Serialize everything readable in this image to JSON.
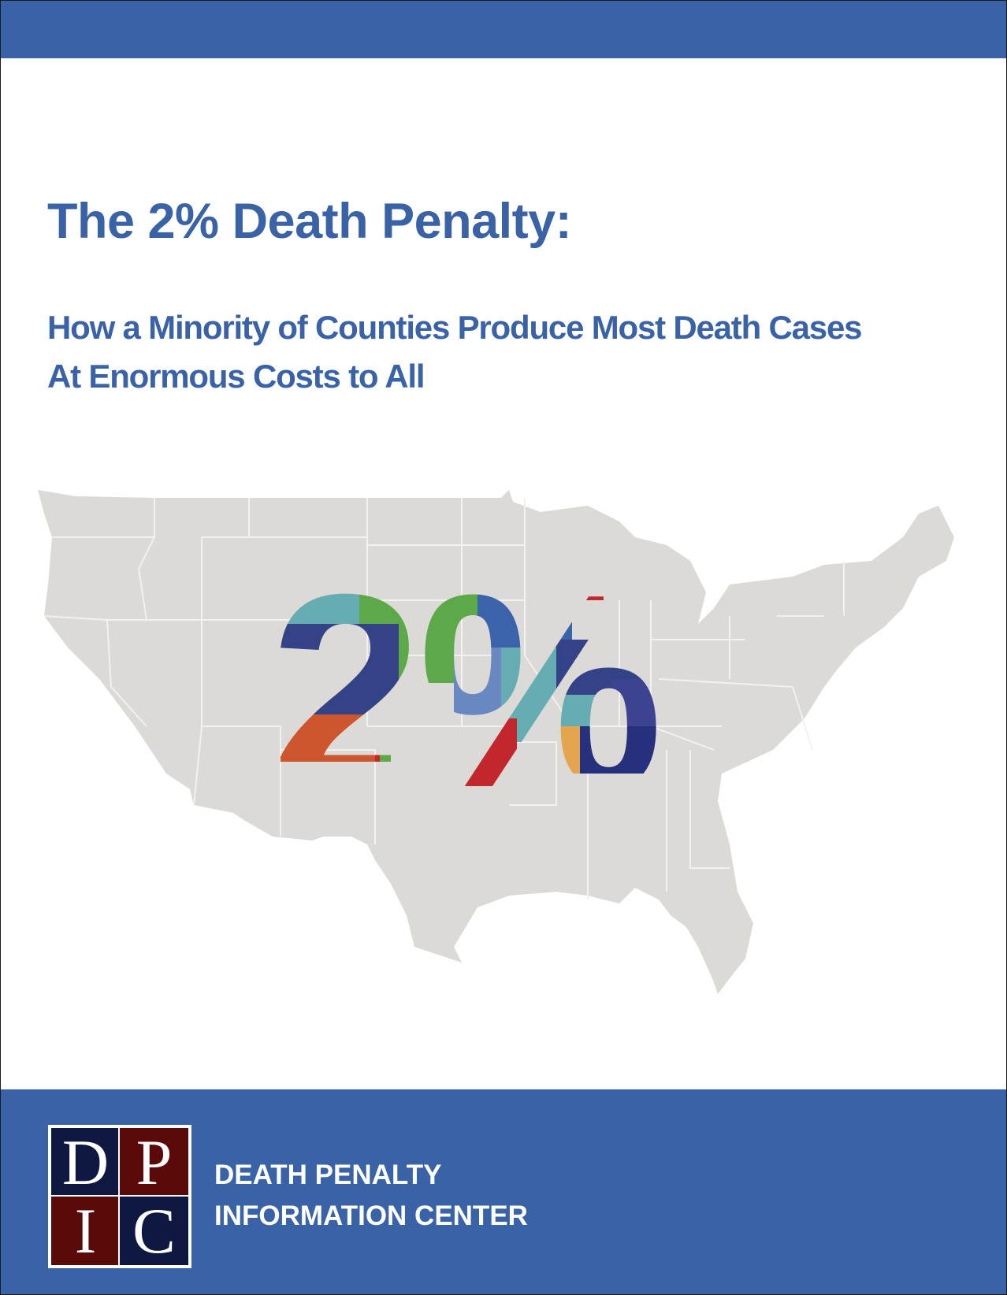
{
  "header": {
    "title": "The 2% Death Penalty:",
    "subtitle_line1": "How a Minority of Counties Produce Most Death Cases",
    "subtitle_line2": "At Enormous Costs to All"
  },
  "hero": {
    "big_text": "2%"
  },
  "footer": {
    "logo_letters": [
      "D",
      "P",
      "I",
      "C"
    ],
    "org_line1": "DEATH PENALTY",
    "org_line2": "INFORMATION CENTER"
  },
  "colors": {
    "brand_blue": "#3a62a7",
    "logo_navy": "#0e1840",
    "logo_maroon": "#5b0a0a",
    "map_state": "#d9d7d3"
  }
}
